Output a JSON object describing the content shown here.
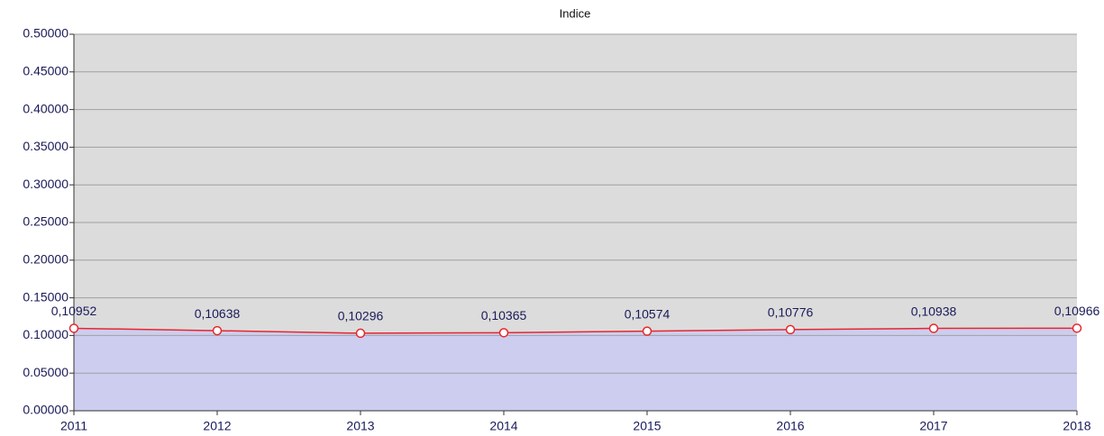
{
  "chart_data": {
    "type": "line",
    "title": "Indice",
    "categories": [
      "2011",
      "2012",
      "2013",
      "2014",
      "2015",
      "2016",
      "2017",
      "2018"
    ],
    "series": [
      {
        "name": "Indice",
        "color": "#e8262b",
        "area_color": "#cdcdf0",
        "values": [
          0.10952,
          0.10638,
          0.10296,
          0.10365,
          0.10574,
          0.10776,
          0.10938,
          0.10966
        ],
        "value_labels": [
          "0,10952",
          "0,10638",
          "0,10296",
          "0,10365",
          "0,10574",
          "0,10776",
          "0,10938",
          "0,10966"
        ]
      }
    ],
    "ylim": [
      0,
      0.5
    ],
    "yticks": [
      {
        "value": 0,
        "label": "0.00000"
      },
      {
        "value": 0.05,
        "label": "0.05000"
      },
      {
        "value": 0.1,
        "label": "0.10000"
      },
      {
        "value": 0.15,
        "label": "0.15000"
      },
      {
        "value": 0.2,
        "label": "0.20000"
      },
      {
        "value": 0.25,
        "label": "0.25000"
      },
      {
        "value": 0.3,
        "label": "0.30000"
      },
      {
        "value": 0.35,
        "label": "0.35000"
      },
      {
        "value": 0.4,
        "label": "0.40000"
      },
      {
        "value": 0.45,
        "label": "0.45000"
      },
      {
        "value": 0.5,
        "label": "0.50000"
      }
    ],
    "grid": true
  }
}
